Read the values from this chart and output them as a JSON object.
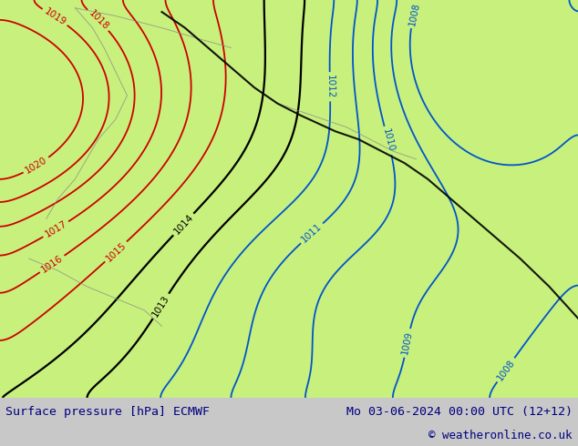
{
  "title_left": "Surface pressure [hPa] ECMWF",
  "title_right": "Mo 03-06-2024 00:00 UTC (12+12)",
  "copyright": "© weatheronline.co.uk",
  "bg_color": "#c8f07d",
  "footer_bg": "#c8c8c8",
  "footer_text_color": "#000080",
  "copyright_color": "#000080",
  "contour_colors": {
    "blue": "#0055cc",
    "black": "#000000",
    "red": "#cc0000",
    "gray": "#888888"
  },
  "figsize": [
    6.34,
    4.9
  ],
  "dpi": 100,
  "levels_red": [
    1015,
    1016,
    1017,
    1018,
    1019,
    1020
  ],
  "levels_black": [
    1013,
    1014
  ],
  "levels_blue": [
    1008,
    1009,
    1010,
    1011,
    1012
  ]
}
